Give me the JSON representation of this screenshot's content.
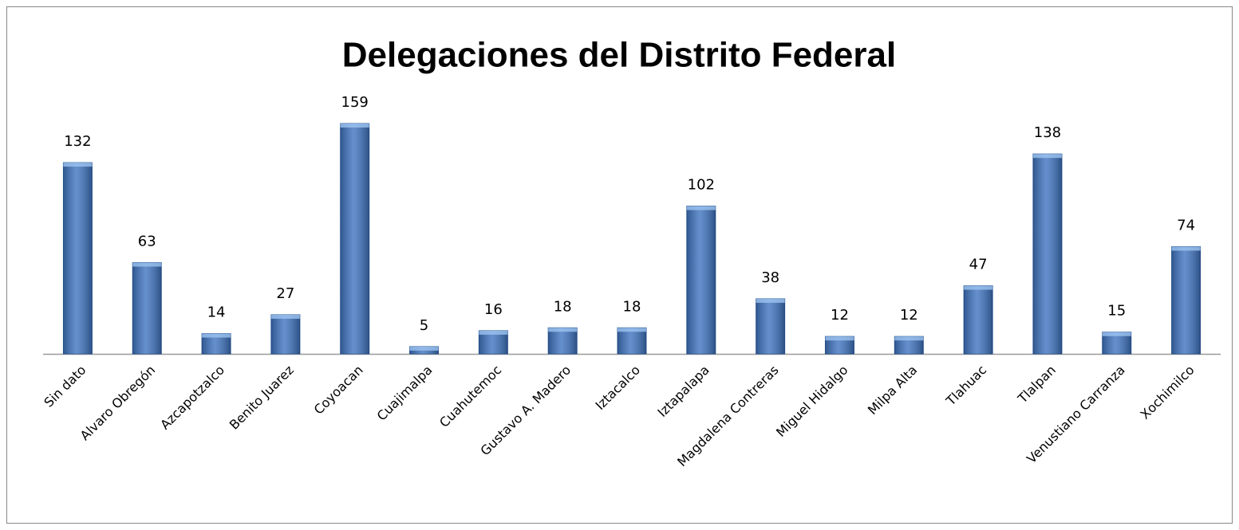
{
  "chart_data": {
    "type": "bar",
    "title": "Delegaciones del Distrito Federal",
    "categories": [
      "Sin dato",
      "Alvaro Obregón",
      "Azcapotzalco",
      "Benito Juarez",
      "Coyoacan",
      "Cuajimalpa",
      "Cuahutemoc",
      "Gustavo A. Madero",
      "Iztacalco",
      "Iztapalapa",
      "Magdalena Contreras",
      "Miguel Hidalgo",
      "Milpa Alta",
      "Tlahuac",
      "Tlalpan",
      "Venustiano Carranza",
      "Xochimilco"
    ],
    "values": [
      132,
      63,
      14,
      27,
      159,
      5,
      16,
      18,
      18,
      102,
      38,
      12,
      12,
      47,
      138,
      15,
      74
    ],
    "color": "#3f74c0"
  }
}
